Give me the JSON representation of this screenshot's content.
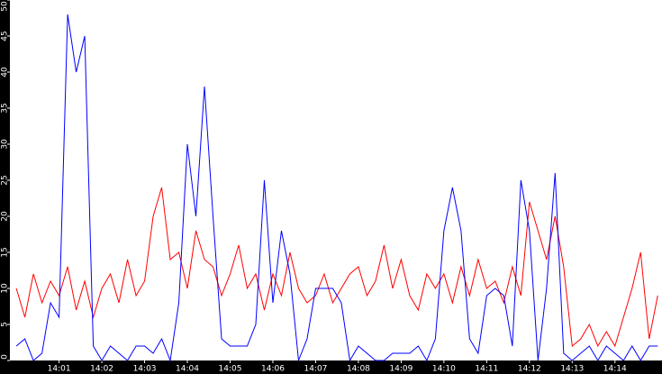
{
  "chart_data": {
    "type": "line",
    "x": [
      0,
      0.2,
      0.4,
      0.6,
      0.8,
      1.0,
      1.2,
      1.4,
      1.6,
      1.8,
      2.0,
      2.2,
      2.4,
      2.6,
      2.8,
      3.0,
      3.2,
      3.4,
      3.6,
      3.8,
      4.0,
      4.2,
      4.4,
      4.6,
      4.8,
      5.0,
      5.2,
      5.4,
      5.6,
      5.8,
      6.0,
      6.2,
      6.4,
      6.6,
      6.8,
      7.0,
      7.2,
      7.4,
      7.6,
      7.8,
      8.0,
      8.2,
      8.4,
      8.6,
      8.8,
      9.0,
      9.2,
      9.4,
      9.6,
      9.8,
      10.0,
      10.2,
      10.4,
      10.6,
      10.8,
      11.0,
      11.2,
      11.4,
      11.6,
      11.8,
      12.0,
      12.2,
      12.4,
      12.6,
      12.8,
      13.0,
      13.2,
      13.4,
      13.6,
      13.8,
      14.0,
      14.2,
      14.4,
      14.6,
      14.8,
      15.0
    ],
    "series": [
      {
        "color": "#ff0000",
        "values": [
          10,
          6,
          12,
          8,
          11,
          9,
          13,
          7,
          11,
          6,
          10,
          12,
          8,
          14,
          9,
          11,
          20,
          24,
          14,
          15,
          10,
          18,
          14,
          13,
          9,
          12,
          16,
          10,
          12,
          7,
          12,
          9,
          15,
          10,
          8,
          9,
          12,
          8,
          10,
          12,
          13,
          9,
          11,
          16,
          10,
          14,
          9,
          7,
          12,
          10,
          12,
          8,
          13,
          9,
          14,
          10,
          11,
          8,
          13,
          9,
          22,
          18,
          14,
          20,
          13,
          2,
          3,
          5,
          2,
          4,
          2,
          6,
          10,
          15,
          3,
          9
        ]
      },
      {
        "color": "#0000ff",
        "values": [
          2,
          3,
          0,
          1,
          8,
          6,
          48,
          40,
          45,
          2,
          0,
          2,
          1,
          0,
          2,
          2,
          1,
          3,
          0,
          8,
          30,
          20,
          38,
          20,
          3,
          2,
          2,
          2,
          5,
          25,
          8,
          18,
          12,
          0,
          3,
          10,
          10,
          10,
          8,
          0,
          2,
          1,
          0,
          0,
          1,
          1,
          1,
          2,
          0,
          3,
          18,
          24,
          18,
          3,
          1,
          9,
          10,
          9,
          2,
          25,
          18,
          0,
          10,
          26,
          1,
          0,
          1,
          2,
          0,
          2,
          1,
          0,
          2,
          0,
          2,
          2
        ]
      }
    ],
    "xlim": [
      -0.15,
      15.1
    ],
    "xticks": [
      {
        "value": 1,
        "label": "14:01"
      },
      {
        "value": 2,
        "label": "14:02"
      },
      {
        "value": 3,
        "label": "14:03"
      },
      {
        "value": 4,
        "label": "14:04"
      },
      {
        "value": 5,
        "label": "14:05"
      },
      {
        "value": 6,
        "label": "14:06"
      },
      {
        "value": 7,
        "label": "14:07"
      },
      {
        "value": 8,
        "label": "14:08"
      },
      {
        "value": 9,
        "label": "14:09"
      },
      {
        "value": 10,
        "label": "14:10"
      },
      {
        "value": 11,
        "label": "14:11"
      },
      {
        "value": 12,
        "label": "14:12"
      },
      {
        "value": 13,
        "label": "14:13"
      },
      {
        "value": 14,
        "label": "14:14"
      }
    ],
    "ylim": [
      0,
      50
    ],
    "yticks": [
      0,
      5,
      10,
      15,
      20,
      25,
      30,
      35,
      40,
      45,
      50
    ]
  }
}
